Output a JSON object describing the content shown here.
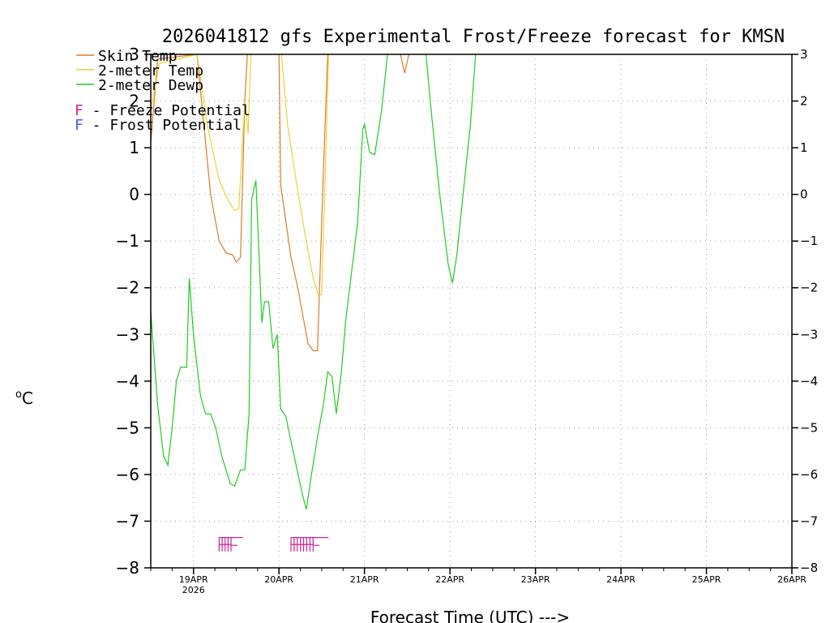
{
  "chart_data": {
    "type": "line",
    "title": "2026041812 gfs Experimental Frost/Freeze forecast for KMSN",
    "ylabel": "°C",
    "xlabel": "Forecast Time (UTC) --->",
    "ylim": [
      -8,
      3
    ],
    "xlim": [
      -0.5,
      7.0
    ],
    "yticks": [
      -8,
      -7,
      -6,
      -5,
      -4,
      -3,
      -2,
      -1,
      0,
      1,
      2,
      3
    ],
    "yticks_right": [
      -8,
      -7,
      -6,
      -5,
      -4,
      -3,
      -2,
      -1,
      0,
      1,
      2,
      3
    ],
    "xticks": [
      {
        "x": 0,
        "label": "19APR",
        "sub": "2026"
      },
      {
        "x": 1,
        "label": "20APR",
        "sub": ""
      },
      {
        "x": 2,
        "label": "21APR",
        "sub": ""
      },
      {
        "x": 3,
        "label": "22APR",
        "sub": ""
      },
      {
        "x": 4,
        "label": "23APR",
        "sub": ""
      },
      {
        "x": 5,
        "label": "24APR",
        "sub": ""
      },
      {
        "x": 6,
        "label": "25APR",
        "sub": ""
      },
      {
        "x": 7,
        "label": "26APR",
        "sub": ""
      }
    ],
    "grid": true,
    "legend": [
      {
        "name": "Skin Temp",
        "color": "#e07a28"
      },
      {
        "name": "2-meter Temp",
        "color": "#e8d438"
      },
      {
        "name": "2-meter Dewp",
        "color": "#22cc22"
      }
    ],
    "potential_legend": [
      {
        "letter": "F",
        "text": " - Freeze Potential",
        "color": "#cc2299"
      },
      {
        "letter": "F",
        "text": " - Frost Potential",
        "color": "#5555ee"
      }
    ],
    "series": [
      {
        "name": "Skin Temp",
        "color": "#e07a28",
        "points": [
          [
            -0.5,
            1.1
          ],
          [
            -0.42,
            2.9
          ],
          [
            0.04,
            3
          ],
          [
            0.2,
            0
          ],
          [
            0.3,
            -1.0
          ],
          [
            0.38,
            -1.25
          ],
          [
            0.46,
            -1.3
          ],
          [
            0.5,
            -1.45
          ],
          [
            0.55,
            -1.35
          ],
          [
            0.6,
            2.0
          ],
          [
            0.63,
            3
          ]
        ]
      },
      {
        "name": "Skin Temp",
        "color": "#e07a28",
        "points": [
          [
            1.0,
            3
          ],
          [
            1.02,
            0.2
          ],
          [
            1.14,
            -1.35
          ],
          [
            1.22,
            -2.0
          ],
          [
            1.28,
            -2.6
          ],
          [
            1.34,
            -3.2
          ],
          [
            1.4,
            -3.35
          ],
          [
            1.45,
            -3.35
          ],
          [
            1.52,
            0.5
          ],
          [
            1.57,
            3
          ]
        ]
      },
      {
        "name": "Skin Temp",
        "color": "#e07a28",
        "points": [
          [
            2.42,
            3
          ],
          [
            2.47,
            2.6
          ],
          [
            2.52,
            3
          ]
        ]
      },
      {
        "name": "2-meter Temp",
        "color": "#e8d438",
        "points": [
          [
            -0.5,
            1.8
          ],
          [
            -0.4,
            2.8
          ],
          [
            0.04,
            3
          ],
          [
            0.16,
            1.5
          ],
          [
            0.3,
            0.3
          ],
          [
            0.4,
            -0.1
          ],
          [
            0.48,
            -0.35
          ],
          [
            0.53,
            -0.3
          ],
          [
            0.6,
            2.0
          ],
          [
            0.64,
            1.3
          ],
          [
            0.67,
            3
          ]
        ]
      },
      {
        "name": "2-meter Temp",
        "color": "#e8d438",
        "points": [
          [
            1.03,
            3
          ],
          [
            1.1,
            1.5
          ],
          [
            1.2,
            0.3
          ],
          [
            1.3,
            -0.8
          ],
          [
            1.4,
            -1.8
          ],
          [
            1.46,
            -2.15
          ],
          [
            1.5,
            -2.15
          ],
          [
            1.55,
            1.0
          ],
          [
            1.58,
            3
          ]
        ]
      },
      {
        "name": "2-meter Dewp",
        "color": "#22cc22",
        "points": [
          [
            -0.5,
            -2.5
          ],
          [
            -0.42,
            -4.5
          ],
          [
            -0.35,
            -5.6
          ],
          [
            -0.3,
            -5.8
          ],
          [
            -0.25,
            -5.0
          ],
          [
            -0.2,
            -4.0
          ],
          [
            -0.15,
            -3.7
          ],
          [
            -0.08,
            -3.7
          ],
          [
            -0.05,
            -1.8
          ],
          [
            0.0,
            -3.0
          ],
          [
            0.08,
            -4.3
          ],
          [
            0.14,
            -4.7
          ],
          [
            0.2,
            -4.7
          ],
          [
            0.26,
            -5.0
          ],
          [
            0.33,
            -5.6
          ],
          [
            0.38,
            -5.9
          ],
          [
            0.43,
            -6.2
          ],
          [
            0.48,
            -6.25
          ],
          [
            0.55,
            -5.9
          ],
          [
            0.6,
            -5.9
          ],
          [
            0.65,
            -4.7
          ],
          [
            0.68,
            -0.1
          ],
          [
            0.73,
            0.3
          ],
          [
            0.8,
            -2.75
          ],
          [
            0.83,
            -2.3
          ],
          [
            0.88,
            -2.3
          ],
          [
            0.93,
            -3.3
          ],
          [
            0.98,
            -3.0
          ],
          [
            1.02,
            -4.6
          ],
          [
            1.08,
            -4.75
          ],
          [
            1.13,
            -5.2
          ],
          [
            1.2,
            -5.8
          ],
          [
            1.27,
            -6.4
          ],
          [
            1.32,
            -6.75
          ],
          [
            1.38,
            -6.0
          ],
          [
            1.45,
            -5.2
          ],
          [
            1.52,
            -4.5
          ],
          [
            1.57,
            -3.8
          ],
          [
            1.62,
            -3.9
          ],
          [
            1.67,
            -4.7
          ],
          [
            1.73,
            -3.8
          ],
          [
            1.78,
            -2.7
          ],
          [
            1.84,
            -1.8
          ],
          [
            1.92,
            -0.6
          ],
          [
            1.98,
            1.4
          ],
          [
            2.0,
            1.5
          ],
          [
            2.06,
            0.9
          ],
          [
            2.12,
            0.85
          ],
          [
            2.2,
            1.8
          ],
          [
            2.27,
            3
          ]
        ]
      },
      {
        "name": "2-meter Dewp",
        "color": "#22cc22",
        "points": [
          [
            2.72,
            3
          ],
          [
            2.78,
            1.8
          ],
          [
            2.88,
            0
          ],
          [
            2.98,
            -1.5
          ],
          [
            3.03,
            -1.9
          ],
          [
            3.08,
            -1.3
          ],
          [
            3.17,
            0.3
          ],
          [
            3.24,
            1.5
          ],
          [
            3.3,
            3
          ]
        ]
      }
    ],
    "potential_marks": [
      {
        "type": "Freeze",
        "color": "#cc2299",
        "x_start": 0.3,
        "x_end": 0.58,
        "count": 5
      },
      {
        "type": "Freeze",
        "color": "#cc2299",
        "x_start": 1.14,
        "x_end": 1.58,
        "count": 8
      }
    ]
  }
}
